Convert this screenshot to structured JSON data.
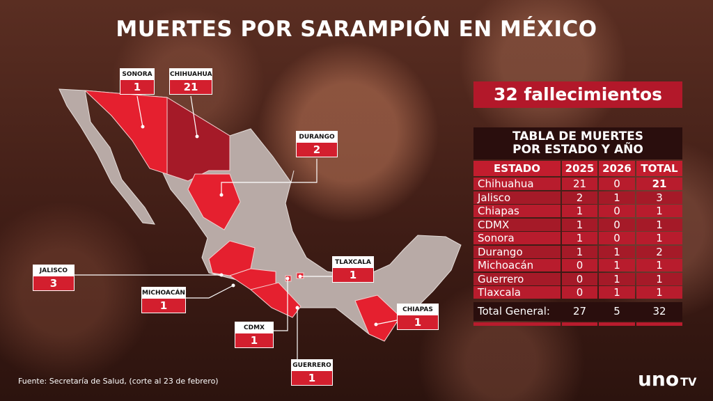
{
  "title": "MUERTES POR SARAMPIÓN EN MÉXICO",
  "headline": "32 fallecimientos",
  "map": {
    "callouts": [
      {
        "state": "SONORA",
        "deaths": 1
      },
      {
        "state": "CHIHUAHUA",
        "deaths": 21
      },
      {
        "state": "DURANGO",
        "deaths": 2
      },
      {
        "state": "JALISCO",
        "deaths": 3
      },
      {
        "state": "MICHOACÁN",
        "deaths": 1
      },
      {
        "state": "CDMX",
        "deaths": 1
      },
      {
        "state": "GUERRERO",
        "deaths": 1
      },
      {
        "state": "TLAXCALA",
        "deaths": 1
      },
      {
        "state": "CHIAPAS",
        "deaths": 1
      }
    ]
  },
  "table": {
    "title": [
      "TABLA DE MUERTES",
      "POR ESTADO Y AÑO"
    ],
    "columns": [
      "ESTADO",
      "2025",
      "2026",
      "TOTAL"
    ],
    "rows": [
      [
        "Chihuahua",
        21,
        0,
        21
      ],
      [
        "Jalisco",
        2,
        1,
        3
      ],
      [
        "Chiapas",
        1,
        0,
        1
      ],
      [
        "CDMX",
        1,
        0,
        1
      ],
      [
        "Sonora",
        1,
        0,
        1
      ],
      [
        "Durango",
        1,
        1,
        2
      ],
      [
        "Michoacán",
        0,
        1,
        1
      ],
      [
        "Guerrero",
        0,
        1,
        1
      ],
      [
        "Tlaxcala",
        0,
        1,
        1
      ]
    ],
    "total": [
      "Total General:",
      27,
      5,
      32
    ]
  },
  "source": "Fuente: Secretaría de Salud, (corte al 23 de febrero)",
  "logo": {
    "main": "uno",
    "suffix": "TV"
  }
}
